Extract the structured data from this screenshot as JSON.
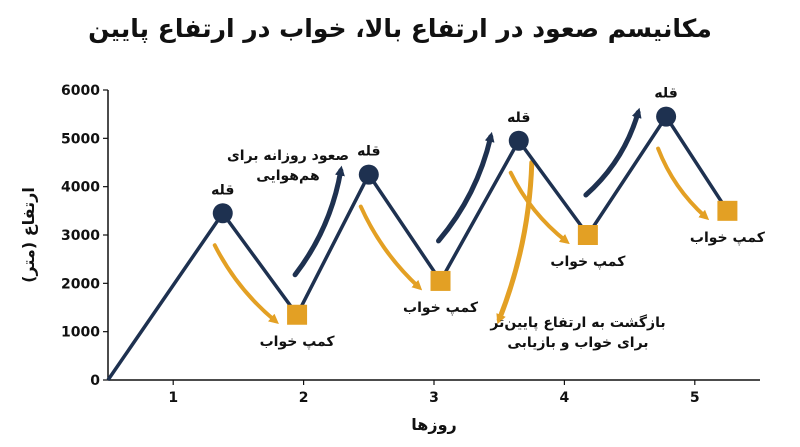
{
  "chart_data": {
    "type": "line",
    "title": "مکانیسم صعود در ارتفاع بالا، خواب در ارتفاع پایین",
    "xlabel": "روزها",
    "ylabel": "ارتفاع (متر)",
    "xlim": [
      0.5,
      5.5
    ],
    "ylim": [
      0,
      6000
    ],
    "x_ticks": [
      1,
      2,
      3,
      4,
      5
    ],
    "y_ticks": [
      0,
      1000,
      2000,
      3000,
      4000,
      5000,
      6000
    ],
    "y_tick_labels": [
      "0",
      "1000",
      "2000",
      "3000",
      "4000",
      "5000",
      "6000"
    ],
    "series": [
      {
        "values": [
          {
            "x": 0.5,
            "y": 0
          },
          {
            "x": 1.38,
            "y": 3450
          },
          {
            "x": 1.95,
            "y": 1350
          },
          {
            "x": 2.5,
            "y": 4250
          },
          {
            "x": 3.05,
            "y": 2050
          },
          {
            "x": 3.65,
            "y": 4950
          },
          {
            "x": 4.18,
            "y": 3000
          },
          {
            "x": 4.78,
            "y": 5450
          },
          {
            "x": 5.25,
            "y": 3500
          }
        ]
      }
    ],
    "peaks": [
      {
        "x": 1.38,
        "y": 3450,
        "label": "قله"
      },
      {
        "x": 2.5,
        "y": 4250,
        "label": "قله"
      },
      {
        "x": 3.65,
        "y": 4950,
        "label": "قله"
      },
      {
        "x": 4.78,
        "y": 5450,
        "label": "قله"
      }
    ],
    "camps": [
      {
        "x": 1.95,
        "y": 1350,
        "label": "کمپ خواب"
      },
      {
        "x": 3.05,
        "y": 2050,
        "label": "کمپ خواب"
      },
      {
        "x": 4.18,
        "y": 3000,
        "label": "کمپ خواب"
      },
      {
        "x": 5.25,
        "y": 3500,
        "label": "کمپ خواب"
      }
    ],
    "annotations": [
      {
        "text": [
          "صعود روزانه برای",
          "هم‌هوایی"
        ]
      },
      {
        "text": [
          "بازگشت به ارتفاع پایین‌تر",
          "برای خواب و بازیابی"
        ]
      }
    ],
    "grid": false,
    "colors": {
      "line": "#1e3150",
      "peak": "#1e3150",
      "camp": "#e3a024",
      "ascent_arrow": "#1e3150",
      "descent_arrow": "#e3a024",
      "text": "#111111"
    }
  }
}
